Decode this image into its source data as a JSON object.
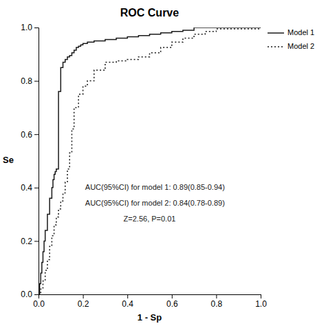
{
  "chart_data": {
    "type": "step",
    "title": "ROC Curve",
    "x_label": "1 - Sp",
    "y_label": "Se",
    "xlim": [
      0.0,
      1.0
    ],
    "ylim": [
      0.0,
      1.0
    ],
    "xticks": [
      {
        "value": 0.0,
        "label": "0.0"
      },
      {
        "value": 0.2,
        "label": "0.2"
      },
      {
        "value": 0.4,
        "label": "0.4"
      },
      {
        "value": 0.6,
        "label": "0.6"
      },
      {
        "value": 0.8,
        "label": "0.8"
      },
      {
        "value": 1.0,
        "label": "1.0"
      }
    ],
    "yticks": [
      {
        "value": 0.0,
        "label": "0.0"
      },
      {
        "value": 0.2,
        "label": "0.2"
      },
      {
        "value": 0.4,
        "label": "0.4"
      },
      {
        "value": 0.6,
        "label": "0.6"
      },
      {
        "value": 0.8,
        "label": "0.8"
      },
      {
        "value": 1.0,
        "label": "1.0"
      }
    ],
    "grid": false,
    "legend": "right",
    "series": [
      {
        "name": "Model 1",
        "color": "#1a1a1a",
        "line_style": "solid",
        "x": [
          0.0,
          0.005,
          0.01,
          0.015,
          0.02,
          0.025,
          0.03,
          0.04,
          0.05,
          0.06,
          0.065,
          0.07,
          0.075,
          0.08,
          0.09,
          0.1,
          0.11,
          0.12,
          0.13,
          0.14,
          0.15,
          0.16,
          0.17,
          0.18,
          0.19,
          0.2,
          0.22,
          0.25,
          0.3,
          0.35,
          0.4,
          0.45,
          0.5,
          0.55,
          0.6,
          0.65,
          0.7,
          1.0
        ],
        "values": [
          0.0,
          0.04,
          0.08,
          0.12,
          0.16,
          0.2,
          0.24,
          0.3,
          0.36,
          0.4,
          0.43,
          0.45,
          0.46,
          0.47,
          0.76,
          0.85,
          0.87,
          0.88,
          0.89,
          0.895,
          0.905,
          0.915,
          0.925,
          0.93,
          0.935,
          0.94,
          0.945,
          0.95,
          0.955,
          0.96,
          0.965,
          0.97,
          0.975,
          0.98,
          0.985,
          0.99,
          1.0,
          1.0
        ]
      },
      {
        "name": "Model 2",
        "color": "#1a1a1a",
        "line_style": "dotted",
        "x": [
          0.0,
          0.01,
          0.02,
          0.03,
          0.04,
          0.05,
          0.06,
          0.07,
          0.08,
          0.09,
          0.1,
          0.11,
          0.12,
          0.13,
          0.14,
          0.15,
          0.16,
          0.18,
          0.2,
          0.22,
          0.25,
          0.3,
          0.35,
          0.4,
          0.45,
          0.5,
          0.55,
          0.6,
          0.65,
          0.7,
          0.75,
          0.8,
          1.0
        ],
        "values": [
          0.0,
          0.02,
          0.05,
          0.09,
          0.13,
          0.18,
          0.22,
          0.26,
          0.29,
          0.32,
          0.35,
          0.38,
          0.42,
          0.47,
          0.53,
          0.62,
          0.7,
          0.75,
          0.78,
          0.8,
          0.84,
          0.87,
          0.875,
          0.88,
          0.89,
          0.905,
          0.925,
          0.945,
          0.96,
          0.975,
          0.985,
          0.995,
          1.0
        ]
      }
    ],
    "annotations": [
      "AUC(95%CI) for model 1: 0.89(0.85-0.94)",
      "AUC(95%CI) for model 2: 0.84(0.78-0.89)",
      "Z=2.56, P=0.01"
    ]
  }
}
